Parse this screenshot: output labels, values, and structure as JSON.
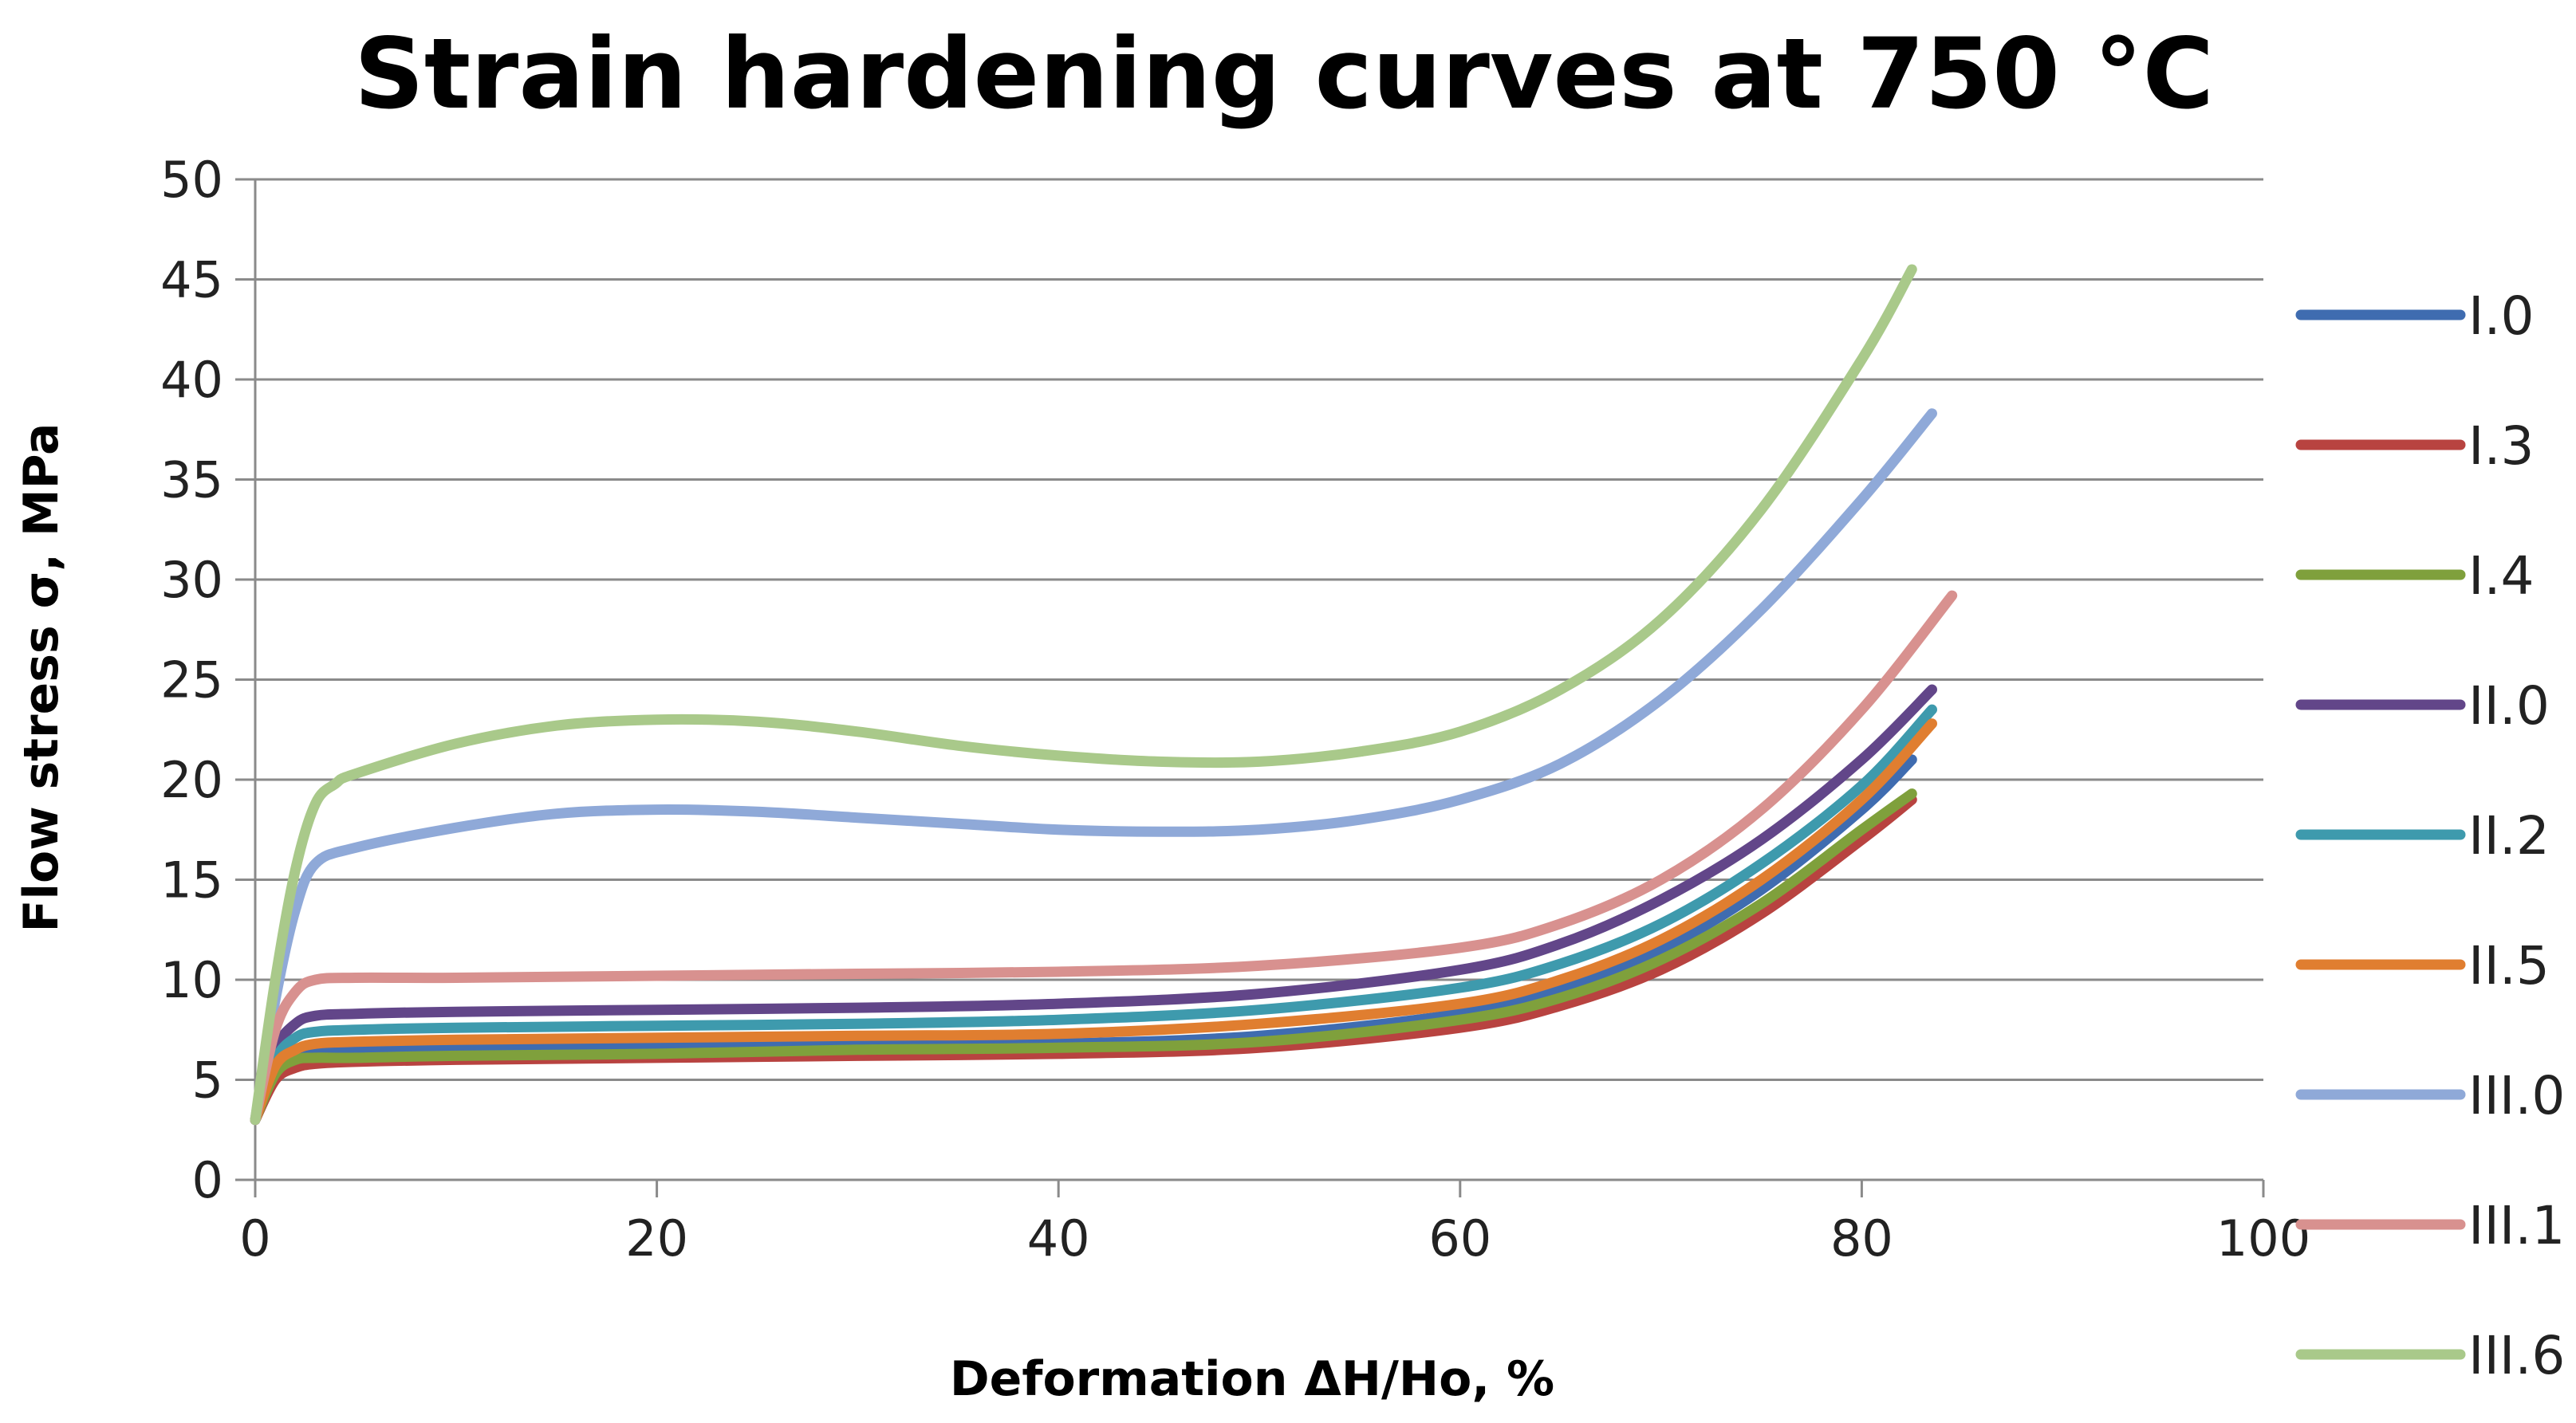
{
  "chart_data": {
    "type": "line",
    "title": "Strain hardening curves at 750 °C",
    "xlabel": "Deformation ΔH/Ho, %",
    "ylabel": "Flow stress σ, MPa",
    "xlim": [
      0,
      100
    ],
    "ylim": [
      0,
      50
    ],
    "x_ticks": [
      0,
      20,
      40,
      60,
      80,
      100
    ],
    "y_ticks": [
      0,
      5,
      10,
      15,
      20,
      25,
      30,
      35,
      40,
      45,
      50
    ],
    "grid": true,
    "legend_position": "right",
    "series": [
      {
        "name": "I.0",
        "color": "#3F6CB0",
        "x": [
          0,
          1,
          2,
          3,
          5,
          10,
          20,
          30,
          40,
          50,
          60,
          65,
          70,
          75,
          80,
          82.5
        ],
        "y": [
          3,
          5.2,
          6,
          6.3,
          6.4,
          6.5,
          6.6,
          6.7,
          6.8,
          7.2,
          8.3,
          9.5,
          11.5,
          14.5,
          18.5,
          21
        ]
      },
      {
        "name": "I.3",
        "color": "#B84340",
        "x": [
          0,
          1,
          2,
          3,
          5,
          10,
          20,
          30,
          40,
          50,
          60,
          65,
          70,
          75,
          80,
          82.5
        ],
        "y": [
          3,
          5,
          5.6,
          5.8,
          5.9,
          6,
          6.1,
          6.2,
          6.3,
          6.6,
          7.6,
          8.7,
          10.5,
          13.3,
          17,
          19
        ]
      },
      {
        "name": "I.4",
        "color": "#7FA03C",
        "x": [
          0,
          1,
          2,
          3,
          5,
          10,
          20,
          30,
          40,
          50,
          60,
          65,
          70,
          75,
          80,
          82.5
        ],
        "y": [
          3,
          5.3,
          6,
          6.1,
          6.1,
          6.2,
          6.3,
          6.5,
          6.6,
          6.9,
          8,
          9.1,
          11,
          13.8,
          17.5,
          19.3
        ]
      },
      {
        "name": "II.0",
        "color": "#624689",
        "x": [
          0,
          1,
          2,
          3,
          5,
          10,
          20,
          30,
          40,
          50,
          60,
          65,
          70,
          75,
          80,
          83.5
        ],
        "y": [
          3,
          6.5,
          7.8,
          8.2,
          8.3,
          8.4,
          8.5,
          8.6,
          8.8,
          9.3,
          10.5,
          11.8,
          14,
          17,
          21,
          24.5
        ]
      },
      {
        "name": "II.2",
        "color": "#3E9AAD",
        "x": [
          0,
          1,
          2,
          3,
          5,
          10,
          20,
          30,
          40,
          50,
          60,
          65,
          70,
          75,
          80,
          83.5
        ],
        "y": [
          3,
          6,
          7.1,
          7.4,
          7.5,
          7.6,
          7.7,
          7.8,
          8,
          8.5,
          9.6,
          10.8,
          12.8,
          15.8,
          19.7,
          23.5
        ]
      },
      {
        "name": "II.5",
        "color": "#E07E30",
        "x": [
          0,
          1,
          2,
          3,
          5,
          10,
          20,
          30,
          40,
          50,
          60,
          65,
          70,
          75,
          80,
          83.5
        ],
        "y": [
          3,
          5.7,
          6.5,
          6.8,
          6.9,
          7,
          7.1,
          7.2,
          7.3,
          7.8,
          8.8,
          10,
          12,
          15,
          19,
          22.8
        ]
      },
      {
        "name": "III.0",
        "color": "#8FA9D8",
        "x": [
          0,
          1,
          2,
          3,
          5,
          10,
          15,
          20,
          25,
          30,
          35,
          40,
          45,
          50,
          55,
          60,
          65,
          70,
          75,
          80,
          83.5
        ],
        "y": [
          3,
          9,
          13.5,
          15.8,
          16.6,
          17.6,
          18.3,
          18.5,
          18.4,
          18.1,
          17.8,
          17.5,
          17.4,
          17.5,
          18,
          19,
          20.8,
          24,
          28.5,
          34,
          38.3
        ]
      },
      {
        "name": "III.1",
        "color": "#D8918F",
        "x": [
          0,
          1,
          2,
          3,
          5,
          10,
          20,
          30,
          40,
          50,
          60,
          65,
          70,
          75,
          80,
          84.5
        ],
        "y": [
          3,
          7.5,
          9.4,
          10,
          10.1,
          10.1,
          10.2,
          10.3,
          10.4,
          10.7,
          11.6,
          12.8,
          15,
          18.5,
          23.5,
          29.2
        ]
      },
      {
        "name": "III.6",
        "color": "#A9C98A",
        "x": [
          0,
          1,
          2,
          3,
          4,
          5,
          10,
          15,
          20,
          25,
          30,
          35,
          40,
          45,
          50,
          55,
          60,
          65,
          70,
          75,
          80,
          82.5
        ],
        "y": [
          3,
          10,
          15.5,
          18.8,
          19.8,
          20.3,
          21.8,
          22.7,
          23,
          22.9,
          22.4,
          21.7,
          21.2,
          20.9,
          20.9,
          21.4,
          22.4,
          24.5,
          28,
          33.5,
          41,
          45.5
        ]
      }
    ]
  }
}
